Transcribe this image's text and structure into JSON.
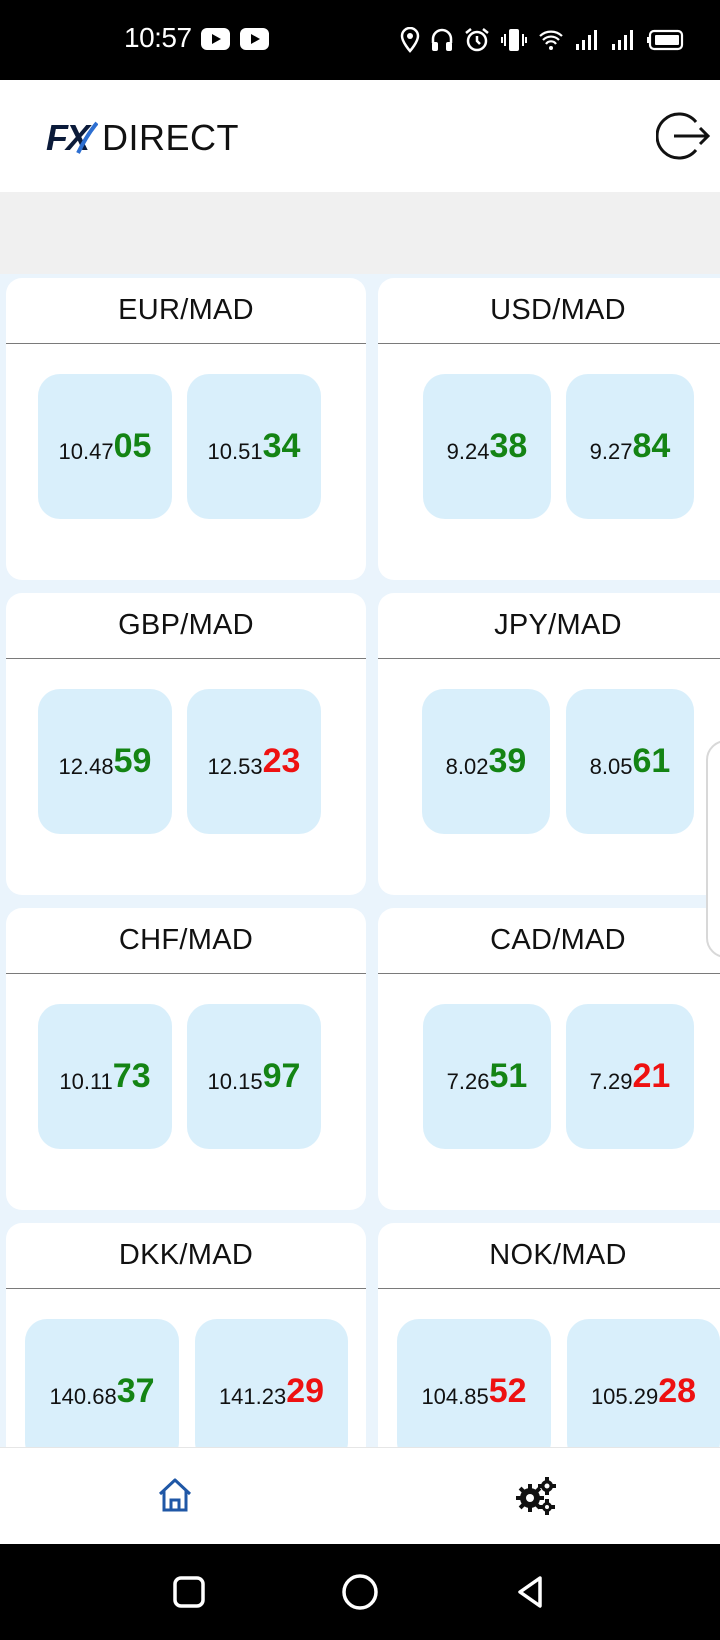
{
  "status_bar": {
    "time": "10:57",
    "icons": [
      "youtube-icon",
      "youtube-icon",
      "location-icon",
      "headphones-icon",
      "alarm-icon",
      "vibrate-icon",
      "wifi-icon",
      "signal-icon",
      "signal-icon",
      "battery-icon"
    ]
  },
  "header": {
    "logo_fx": "FX",
    "logo_direct": "DIRECT",
    "logout_icon": "logout-icon"
  },
  "colors": {
    "up": "#148414",
    "down": "#ee1111",
    "quote_bg": "#d9effb",
    "grid_bg": "#eaf4fc",
    "nav_active": "#1f57a6"
  },
  "pairs": [
    {
      "name": "EUR/MAD",
      "bid": {
        "prefix": "10.47",
        "suffix": "05",
        "trend": "up"
      },
      "ask": {
        "prefix": "10.51",
        "suffix": "34",
        "trend": "up"
      }
    },
    {
      "name": "USD/MAD",
      "bid": {
        "prefix": "9.24",
        "suffix": "38",
        "trend": "up"
      },
      "ask": {
        "prefix": "9.27",
        "suffix": "84",
        "trend": "up"
      }
    },
    {
      "name": "GBP/MAD",
      "bid": {
        "prefix": "12.48",
        "suffix": "59",
        "trend": "up"
      },
      "ask": {
        "prefix": "12.53",
        "suffix": "23",
        "trend": "down"
      }
    },
    {
      "name": "JPY/MAD",
      "bid": {
        "prefix": "8.02",
        "suffix": "39",
        "trend": "up"
      },
      "ask": {
        "prefix": "8.05",
        "suffix": "61",
        "trend": "up"
      }
    },
    {
      "name": "CHF/MAD",
      "bid": {
        "prefix": "10.11",
        "suffix": "73",
        "trend": "up"
      },
      "ask": {
        "prefix": "10.15",
        "suffix": "97",
        "trend": "up"
      }
    },
    {
      "name": "CAD/MAD",
      "bid": {
        "prefix": "7.26",
        "suffix": "51",
        "trend": "up"
      },
      "ask": {
        "prefix": "7.29",
        "suffix": "21",
        "trend": "down"
      }
    },
    {
      "name": "DKK/MAD",
      "bid": {
        "prefix": "140.68",
        "suffix": "37",
        "trend": "up"
      },
      "ask": {
        "prefix": "141.23",
        "suffix": "29",
        "trend": "down"
      }
    },
    {
      "name": "NOK/MAD",
      "bid": {
        "prefix": "104.85",
        "suffix": "52",
        "trend": "down"
      },
      "ask": {
        "prefix": "105.29",
        "suffix": "28",
        "trend": "down"
      }
    }
  ],
  "bottom_nav": {
    "items": [
      {
        "icon": "home-icon",
        "active": true
      },
      {
        "icon": "gears-icon",
        "active": false
      }
    ]
  },
  "system_nav": {
    "buttons": [
      "recents-icon",
      "home-circle-icon",
      "back-icon"
    ]
  }
}
